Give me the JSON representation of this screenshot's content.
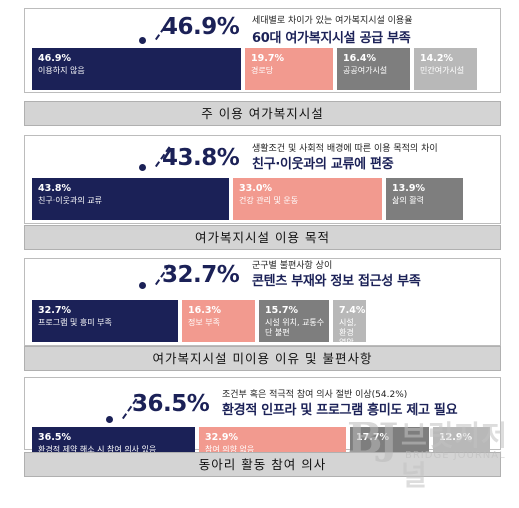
{
  "colors": {
    "navy": "#1b2157",
    "salmon": "#f29a8f",
    "gray_dark": "#7e7e7e",
    "gray_light": "#b8b8b8"
  },
  "chart_data": [
    {
      "type": "bar",
      "stacked": true,
      "orientation": "horizontal",
      "highlight_value": "46.9%",
      "subtitle": "세대별로 차이가 있는 여가복지시설 이용율",
      "headline": "60대 여가복지시설 공급 부족",
      "caption": "주 이용 여가복지시설",
      "segments": [
        {
          "label": "이용하지 않음",
          "value": 46.9,
          "display": "46.9%",
          "color": "#1b2157"
        },
        {
          "label": "경로당",
          "value": 19.7,
          "display": "19.7%",
          "color": "#f29a8f"
        },
        {
          "label": "공공여가시설",
          "value": 16.4,
          "display": "16.4%",
          "color": "#7e7e7e"
        },
        {
          "label": "민간여가시설",
          "value": 14.2,
          "display": "14.2%",
          "color": "#b8b8b8"
        }
      ]
    },
    {
      "type": "bar",
      "stacked": true,
      "orientation": "horizontal",
      "highlight_value": "43.8%",
      "subtitle": "생활조건 및 사회적 배경에 따른 이용 목적의 차이",
      "headline": "친구·이웃과의 교류에 편중",
      "caption": "여가복지시설 이용 목적",
      "segments": [
        {
          "label": "친구·이웃과의 교류",
          "value": 43.8,
          "display": "43.8%",
          "color": "#1b2157"
        },
        {
          "label": "건강 관리 및 운동",
          "value": 33.0,
          "display": "33.0%",
          "color": "#f29a8f"
        },
        {
          "label": "삶의 활력",
          "value": 13.9,
          "display": "13.9%",
          "color": "#7e7e7e"
        }
      ]
    },
    {
      "type": "bar",
      "stacked": true,
      "orientation": "horizontal",
      "highlight_value": "32.7%",
      "subtitle": "군구별 불편사항 상이",
      "headline": "콘텐츠 부재와 정보 접근성 부족",
      "caption": "여가복지시설 미이용 이유 및 불편사항",
      "segments": [
        {
          "label": "프로그램 및 흥미 부족",
          "value": 32.7,
          "display": "32.7%",
          "color": "#1b2157"
        },
        {
          "label": "정보 부족",
          "value": 16.3,
          "display": "16.3%",
          "color": "#f29a8f"
        },
        {
          "label": "시설 위치, 교통수단 불편",
          "value": 15.7,
          "display": "15.7%",
          "color": "#7e7e7e"
        },
        {
          "label": "시설, 환경 열악",
          "value": 7.4,
          "display": "7.4%",
          "color": "#b8b8b8"
        }
      ]
    },
    {
      "type": "bar",
      "stacked": true,
      "orientation": "horizontal",
      "highlight_value": "36.5%",
      "subtitle": "조건부 혹은 적극적 참여 의사 절반 이상(54.2%)",
      "headline": "환경적 인프라 및 프로그램 흥미도 제고 필요",
      "caption": "동아리 활동 참여 의사",
      "segments": [
        {
          "label": "환경적 제약 해소 시 참여 의사 있음",
          "value": 36.5,
          "display": "36.5%",
          "color": "#1b2157"
        },
        {
          "label": "참여 의향 없음",
          "value": 32.9,
          "display": "32.9%",
          "color": "#f29a8f"
        },
        {
          "label": "",
          "value": 17.7,
          "display": "17.7%",
          "color": "#7e7e7e"
        },
        {
          "label": "",
          "value": 12.9,
          "display": "12.9%",
          "color": "#b8b8b8"
        }
      ]
    }
  ],
  "watermark": {
    "logo": "BJ",
    "name": "브릿지저널",
    "name_en": "BRIDGE JOURNAL"
  }
}
